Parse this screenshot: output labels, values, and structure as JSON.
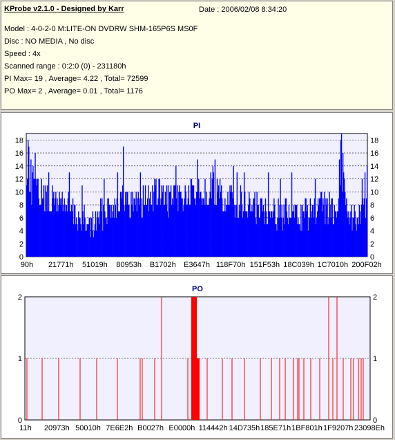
{
  "info": {
    "title": "KProbe v2.1.0 - Designed by Karr",
    "date": "Date : 2006/02/08 8:34:20",
    "lines": [
      "Model : 4-0-2-0 M:LITE-ON DVDRW SHM-165P6S MS0F",
      "Disc : NO MEDIA , No disc",
      "Speed : 4x",
      "Scanned range : 0:2:0 (0) - 231180h",
      "PI Max= 19 , Average= 4.22 , Total= 72599",
      "PO Max= 2 , Average= 0.01 , Total= 1176"
    ]
  },
  "colors": {
    "pi": "#0000ff",
    "po": "#ff0000",
    "plot_bg": "#f0f0ff",
    "title": "#000080"
  },
  "chart_data": [
    {
      "type": "bar",
      "title": "PI",
      "ylim": [
        0,
        19
      ],
      "yticks": [
        0,
        2,
        4,
        6,
        8,
        10,
        12,
        14,
        16,
        18
      ],
      "grid": true,
      "x_tick_labels": [
        "90h",
        "21771h",
        "51019h",
        "80953h",
        "B1702h",
        "E3647h",
        "118F70h",
        "151F53h",
        "18C039h",
        "1C7010h",
        "200F02h"
      ],
      "bins": 480,
      "envelope": [
        [
          0,
          13
        ],
        [
          4,
          12
        ],
        [
          10,
          12
        ],
        [
          20,
          11
        ],
        [
          30,
          10
        ],
        [
          50,
          10
        ],
        [
          60,
          9
        ],
        [
          75,
          7
        ],
        [
          90,
          6
        ],
        [
          100,
          7
        ],
        [
          110,
          9
        ],
        [
          130,
          10
        ],
        [
          160,
          10
        ],
        [
          180,
          11
        ],
        [
          200,
          10
        ],
        [
          230,
          11
        ],
        [
          260,
          12
        ],
        [
          280,
          10
        ],
        [
          300,
          10
        ],
        [
          320,
          9
        ],
        [
          340,
          9
        ],
        [
          360,
          8
        ],
        [
          380,
          8
        ],
        [
          400,
          8
        ],
        [
          420,
          9
        ],
        [
          430,
          9
        ],
        [
          440,
          10
        ],
        [
          445,
          14
        ],
        [
          450,
          10
        ],
        [
          460,
          7
        ],
        [
          470,
          9
        ],
        [
          480,
          10
        ]
      ],
      "peaks": [
        {
          "bin": 2,
          "value": 18
        },
        {
          "bin": 3,
          "value": 17
        },
        {
          "bin": 6,
          "value": 15
        },
        {
          "bin": 9,
          "value": 14
        },
        {
          "bin": 12,
          "value": 16
        },
        {
          "bin": 31,
          "value": 13
        },
        {
          "bin": 60,
          "value": 13
        },
        {
          "bin": 78,
          "value": 11
        },
        {
          "bin": 109,
          "value": 12
        },
        {
          "bin": 128,
          "value": 13
        },
        {
          "bin": 136,
          "value": 17
        },
        {
          "bin": 160,
          "value": 13
        },
        {
          "bin": 187,
          "value": 12
        },
        {
          "bin": 210,
          "value": 14
        },
        {
          "bin": 240,
          "value": 15
        },
        {
          "bin": 251,
          "value": 12
        },
        {
          "bin": 262,
          "value": 14
        },
        {
          "bin": 265,
          "value": 15
        },
        {
          "bin": 291,
          "value": 14
        },
        {
          "bin": 296,
          "value": 13
        },
        {
          "bin": 306,
          "value": 13
        },
        {
          "bin": 340,
          "value": 13
        },
        {
          "bin": 357,
          "value": 12
        },
        {
          "bin": 373,
          "value": 13
        },
        {
          "bin": 406,
          "value": 12
        },
        {
          "bin": 440,
          "value": 15
        },
        {
          "bin": 442,
          "value": 18
        },
        {
          "bin": 443,
          "value": 19
        },
        {
          "bin": 445,
          "value": 16
        },
        {
          "bin": 472,
          "value": 12
        },
        {
          "bin": 476,
          "value": 13
        },
        {
          "bin": 479,
          "value": 14
        }
      ]
    },
    {
      "type": "bar",
      "title": "PO",
      "ylim": [
        0,
        2
      ],
      "yticks": [
        0,
        1,
        2
      ],
      "grid": true,
      "x_tick_labels": [
        "11h",
        "20973h",
        "50010h",
        "7E6E2h",
        "B0027h",
        "E0000h",
        "114442h",
        "14D735h",
        "185E71h",
        "1BF801h",
        "1F9207h",
        "23098Eh"
      ],
      "x_range": [
        0,
        500
      ],
      "spikes": [
        {
          "x": 3,
          "value": 1
        },
        {
          "x": 25,
          "value": 1
        },
        {
          "x": 49,
          "value": 1
        },
        {
          "x": 80,
          "value": 1
        },
        {
          "x": 104,
          "value": 1
        },
        {
          "x": 134,
          "value": 1
        },
        {
          "x": 167,
          "value": 1
        },
        {
          "x": 170,
          "value": 1
        },
        {
          "x": 188,
          "value": 1
        },
        {
          "x": 198,
          "value": 2
        },
        {
          "x": 236,
          "value": 1
        },
        {
          "x": 264,
          "value": 1
        },
        {
          "x": 286,
          "value": 1
        },
        {
          "x": 300,
          "value": 1
        },
        {
          "x": 318,
          "value": 1
        },
        {
          "x": 341,
          "value": 1
        },
        {
          "x": 357,
          "value": 1
        },
        {
          "x": 369,
          "value": 1
        },
        {
          "x": 377,
          "value": 1
        },
        {
          "x": 389,
          "value": 1
        },
        {
          "x": 395,
          "value": 1
        },
        {
          "x": 397,
          "value": 1
        },
        {
          "x": 404,
          "value": 1
        },
        {
          "x": 414,
          "value": 1
        },
        {
          "x": 427,
          "value": 1
        },
        {
          "x": 440,
          "value": 2
        },
        {
          "x": 446,
          "value": 1
        },
        {
          "x": 452,
          "value": 2
        },
        {
          "x": 461,
          "value": 1
        },
        {
          "x": 472,
          "value": 1
        },
        {
          "x": 476,
          "value": 1
        },
        {
          "x": 483,
          "value": 1
        },
        {
          "x": 487,
          "value": 1
        },
        {
          "x": 490,
          "value": 1
        }
      ],
      "blocks": [
        {
          "from": 241,
          "to": 249,
          "value": 2
        },
        {
          "from": 249,
          "to": 253,
          "value": 1
        }
      ]
    }
  ]
}
